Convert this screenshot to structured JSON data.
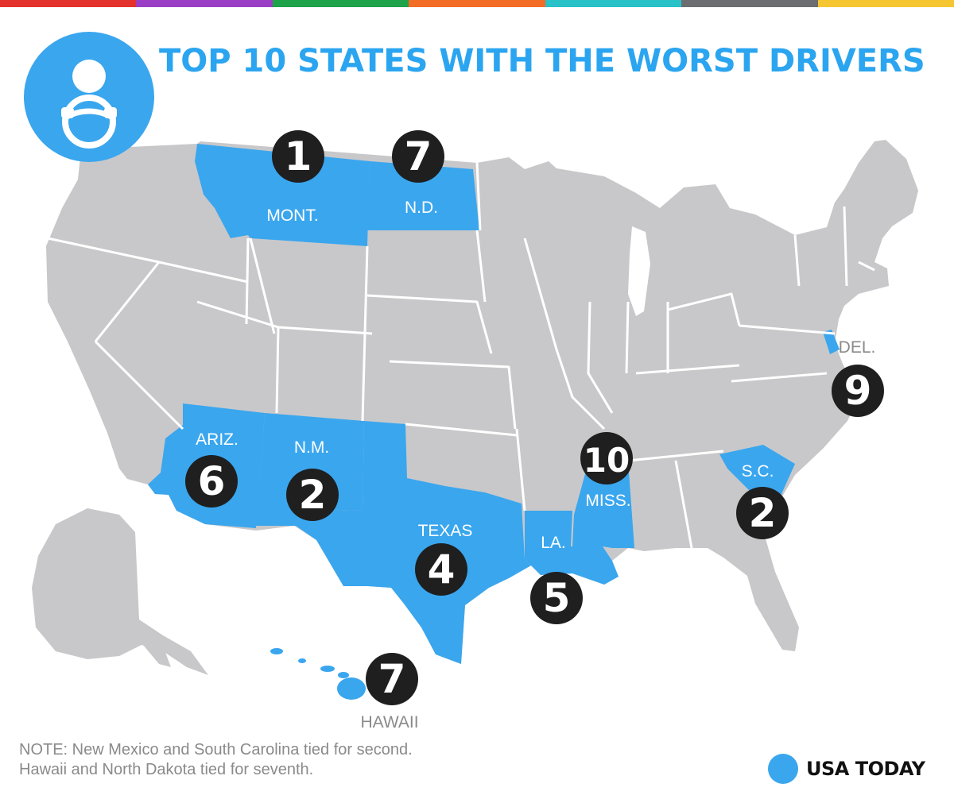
{
  "colors": {
    "highlight": "#3aa6ee",
    "land": "#c8c8ca",
    "border": "#ffffff",
    "badge": "#1f1f1f",
    "label_on_blue": "#ffffff",
    "label_on_white": "#8a8a8a",
    "title": "#2ba5f0",
    "topbar": [
      "#e3322b",
      "#9a3fc5",
      "#1ea24a",
      "#f36c25",
      "#28c2c8",
      "#6b6d70",
      "#f6c632"
    ]
  },
  "header": {
    "title": "TOP 10 STATES WITH THE WORST DRIVERS",
    "icon": "driver-steering-wheel-icon"
  },
  "rankings": [
    {
      "state": "MONT.",
      "rank": "1"
    },
    {
      "state": "N.D.",
      "rank": "7"
    },
    {
      "state": "ARIZ.",
      "rank": "6"
    },
    {
      "state": "N.M.",
      "rank": "2"
    },
    {
      "state": "TEXAS",
      "rank": "4"
    },
    {
      "state": "LA.",
      "rank": "5"
    },
    {
      "state": "MISS.",
      "rank": "10"
    },
    {
      "state": "S.C.",
      "rank": "2"
    },
    {
      "state": "DEL.",
      "rank": "9"
    },
    {
      "state": "HAWAII",
      "rank": "7"
    }
  ],
  "note": {
    "line1": "NOTE:  New Mexico and South Carolina tied for second.",
    "line2": "Hawaii and North Dakota tied for seventh."
  },
  "brand": {
    "name": "USA TODAY"
  }
}
